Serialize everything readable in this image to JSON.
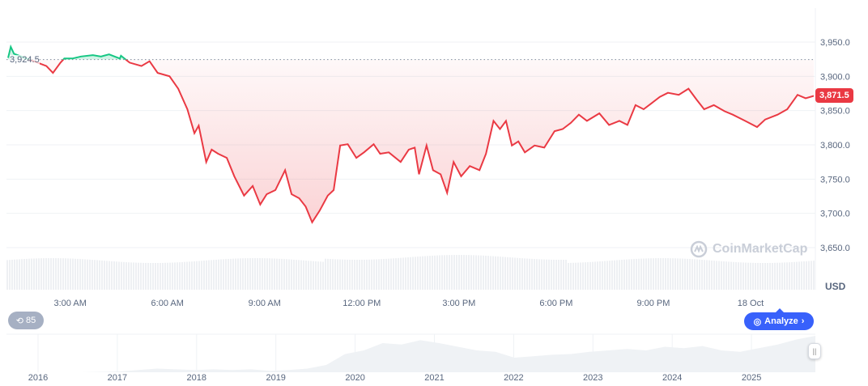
{
  "chart_data": {
    "type": "line",
    "currency": "USD",
    "baseline": 3924.5,
    "baseline_label": "3,924.5",
    "last_price": 3871.5,
    "last_price_label": "3,871.5",
    "ylim": [
      3620,
      3990
    ],
    "yticks": [
      3650,
      3700,
      3750,
      3800,
      3850,
      3900,
      3950
    ],
    "ytick_labels": [
      "3,650.0",
      "3,700.0",
      "3,750.0",
      "3,800.0",
      "3,850.0",
      "3,900.0",
      "3,950.0"
    ],
    "x_range": [
      "17 Oct 01:02",
      "18 Oct 02:00"
    ],
    "xticks": [
      {
        "t": "17 Oct 03:00",
        "label": "3:00 AM"
      },
      {
        "t": "17 Oct 06:00",
        "label": "6:00 AM"
      },
      {
        "t": "17 Oct 09:00",
        "label": "9:00 AM"
      },
      {
        "t": "17 Oct 12:00",
        "label": "12:00 PM"
      },
      {
        "t": "17 Oct 15:00",
        "label": "3:00 PM"
      },
      {
        "t": "17 Oct 18:00",
        "label": "6:00 PM"
      },
      {
        "t": "17 Oct 21:00",
        "label": "9:00 PM"
      },
      {
        "t": "18 Oct 00:00",
        "label": "18 Oct"
      }
    ],
    "colors": {
      "up": "#16c784",
      "down": "#ea3943",
      "analyze": "#3861fb",
      "history": "#a6b0c3"
    },
    "grid": true,
    "points": [
      [
        "17 Oct 01:05",
        3927
      ],
      [
        "17 Oct 01:10",
        3943
      ],
      [
        "17 Oct 01:16",
        3933
      ],
      [
        "17 Oct 02:16",
        3915
      ],
      [
        "17 Oct 02:28",
        3905
      ],
      [
        "17 Oct 02:42",
        3920
      ],
      [
        "17 Oct 02:49",
        3926
      ],
      [
        "17 Oct 03:04",
        3926
      ],
      [
        "17 Oct 03:20",
        3929
      ],
      [
        "17 Oct 03:42",
        3931
      ],
      [
        "17 Oct 03:57",
        3929
      ],
      [
        "17 Oct 04:12",
        3932
      ],
      [
        "17 Oct 04:32",
        3926
      ],
      [
        "17 Oct 04:34",
        3930
      ],
      [
        "17 Oct 04:50",
        3920
      ],
      [
        "17 Oct 05:12",
        3915
      ],
      [
        "17 Oct 05:27",
        3922
      ],
      [
        "17 Oct 05:42",
        3905
      ],
      [
        "17 Oct 06:04",
        3900
      ],
      [
        "17 Oct 06:20",
        3882
      ],
      [
        "17 Oct 06:37",
        3852
      ],
      [
        "17 Oct 06:50",
        3817
      ],
      [
        "17 Oct 06:58",
        3828
      ],
      [
        "17 Oct 07:12",
        3775
      ],
      [
        "17 Oct 07:22",
        3793
      ],
      [
        "17 Oct 07:34",
        3787
      ],
      [
        "17 Oct 07:50",
        3781
      ],
      [
        "17 Oct 08:04",
        3754
      ],
      [
        "17 Oct 08:22",
        3726
      ],
      [
        "17 Oct 08:38",
        3740
      ],
      [
        "17 Oct 08:52",
        3713
      ],
      [
        "17 Oct 09:04",
        3728
      ],
      [
        "17 Oct 09:20",
        3734
      ],
      [
        "17 Oct 09:38",
        3763
      ],
      [
        "17 Oct 09:50",
        3728
      ],
      [
        "17 Oct 10:04",
        3722
      ],
      [
        "17 Oct 10:16",
        3710
      ],
      [
        "17 Oct 10:28",
        3687
      ],
      [
        "17 Oct 10:42",
        3704
      ],
      [
        "17 Oct 10:57",
        3726
      ],
      [
        "17 Oct 11:08",
        3734
      ],
      [
        "17 Oct 11:20",
        3799
      ],
      [
        "17 Oct 11:34",
        3801
      ],
      [
        "17 Oct 11:50",
        3781
      ],
      [
        "17 Oct 12:04",
        3789
      ],
      [
        "17 Oct 12:22",
        3801
      ],
      [
        "17 Oct 12:34",
        3787
      ],
      [
        "17 Oct 12:50",
        3789
      ],
      [
        "17 Oct 13:12",
        3775
      ],
      [
        "17 Oct 13:27",
        3793
      ],
      [
        "17 Oct 13:38",
        3796
      ],
      [
        "17 Oct 13:46",
        3757
      ],
      [
        "17 Oct 14:00",
        3799
      ],
      [
        "17 Oct 14:12",
        3763
      ],
      [
        "17 Oct 14:26",
        3757
      ],
      [
        "17 Oct 14:38",
        3730
      ],
      [
        "17 Oct 14:50",
        3775
      ],
      [
        "17 Oct 15:04",
        3754
      ],
      [
        "17 Oct 15:20",
        3769
      ],
      [
        "17 Oct 15:38",
        3763
      ],
      [
        "17 Oct 15:50",
        3787
      ],
      [
        "17 Oct 16:04",
        3835
      ],
      [
        "17 Oct 16:16",
        3823
      ],
      [
        "17 Oct 16:27",
        3835
      ],
      [
        "17 Oct 16:38",
        3799
      ],
      [
        "17 Oct 16:50",
        3805
      ],
      [
        "17 Oct 17:02",
        3789
      ],
      [
        "17 Oct 17:20",
        3799
      ],
      [
        "17 Oct 17:38",
        3796
      ],
      [
        "17 Oct 17:57",
        3820
      ],
      [
        "17 Oct 18:12",
        3823
      ],
      [
        "17 Oct 18:27",
        3832
      ],
      [
        "17 Oct 18:42",
        3844
      ],
      [
        "17 Oct 18:57",
        3835
      ],
      [
        "17 Oct 19:20",
        3846
      ],
      [
        "17 Oct 19:38",
        3829
      ],
      [
        "17 Oct 19:57",
        3835
      ],
      [
        "17 Oct 20:12",
        3829
      ],
      [
        "17 Oct 20:27",
        3858
      ],
      [
        "17 Oct 20:42",
        3852
      ],
      [
        "17 Oct 20:57",
        3861
      ],
      [
        "17 Oct 21:12",
        3870
      ],
      [
        "17 Oct 21:27",
        3876
      ],
      [
        "17 Oct 21:47",
        3873
      ],
      [
        "17 Oct 22:05",
        3882
      ],
      [
        "17 Oct 22:20",
        3866
      ],
      [
        "17 Oct 22:34",
        3852
      ],
      [
        "17 Oct 22:52",
        3858
      ],
      [
        "17 Oct 23:12",
        3849
      ],
      [
        "17 Oct 23:27",
        3844
      ],
      [
        "17 Oct 23:50",
        3835
      ],
      [
        "18 Oct 00:12",
        3826
      ],
      [
        "18 Oct 00:27",
        3837
      ],
      [
        "18 Oct 00:50",
        3844
      ],
      [
        "18 Oct 01:08",
        3852
      ],
      [
        "18 Oct 01:27",
        3873
      ],
      [
        "18 Oct 01:42",
        3868
      ],
      [
        "18 Oct 01:57",
        3871.5
      ]
    ],
    "navigator": {
      "year_labels": [
        "2016",
        "2017",
        "2018",
        "2019",
        "2020",
        "2021",
        "2022",
        "2023",
        "2024",
        "2025"
      ],
      "values": [
        0,
        0,
        0,
        0,
        0,
        0.5,
        1,
        3,
        5,
        4,
        3,
        4,
        3,
        4,
        2,
        3,
        5,
        10,
        25,
        30,
        40,
        38,
        44,
        40,
        35,
        30,
        28,
        20,
        22,
        24,
        25,
        28,
        30,
        32,
        30,
        35,
        33,
        36,
        30,
        28,
        33,
        38,
        45,
        50
      ]
    }
  },
  "labels": {
    "usd": "USD",
    "history_count": "85",
    "analyze": "Analyze",
    "watermark": "CoinMarketCap"
  }
}
